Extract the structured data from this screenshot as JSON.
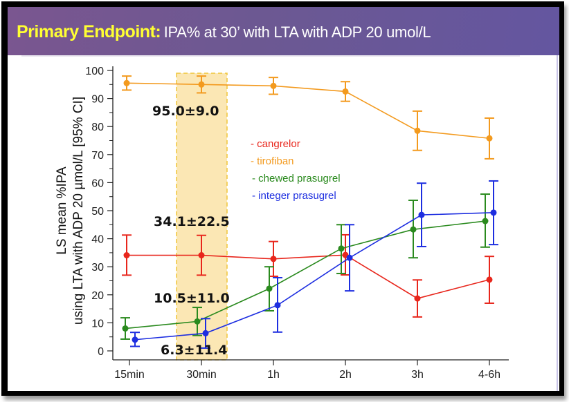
{
  "header": {
    "title_emphasis": "Primary Endpoint:",
    "title_rest": "IPA% at 30’ with LTA with ADP 20 umol/L"
  },
  "chart_data": {
    "type": "line",
    "title": "Primary Endpoint: IPA% at 30’ with LTA with ADP 20 umol/L",
    "xlabel": "",
    "ylabel_line1": "LS mean %IPA",
    "ylabel_line2": "using LTA with ADP 20 µmol/L [95% CI]",
    "categories": [
      "15min",
      "30min",
      "1h",
      "2h",
      "3h",
      "4-6h"
    ],
    "ylim": [
      0,
      100
    ],
    "yticks": [
      0,
      10,
      20,
      30,
      40,
      50,
      60,
      70,
      80,
      90,
      100
    ],
    "grid": false,
    "legend_position": "center",
    "highlight_category": "30min",
    "series": [
      {
        "name": "cangrelor",
        "legend_label": "- cangrelor",
        "color": "#e8261c",
        "values": [
          34.1,
          34.1,
          32.8,
          34.2,
          18.7,
          25.4
        ],
        "ci_low": [
          27.0,
          27.0,
          26.6,
          27.1,
          12.1,
          17.0
        ],
        "ci_high": [
          41.3,
          41.2,
          39.0,
          41.4,
          25.3,
          33.7
        ]
      },
      {
        "name": "tirofiban",
        "legend_label": "- tirofiban",
        "color": "#f39a1e",
        "values": [
          95.5,
          95.0,
          94.5,
          92.5,
          78.5,
          75.8
        ],
        "ci_low": [
          93.0,
          92.0,
          91.5,
          89.0,
          71.5,
          68.5
        ],
        "ci_high": [
          98.0,
          98.0,
          97.5,
          96.0,
          85.5,
          83.0
        ]
      },
      {
        "name": "chewed prasugrel",
        "legend_label": "- chewed prasugrel",
        "color": "#2a8a1e",
        "values": [
          8.0,
          10.5,
          22.2,
          36.5,
          43.3,
          46.3
        ],
        "ci_low": [
          4.2,
          5.5,
          14.3,
          27.6,
          33.2,
          37.0
        ],
        "ci_high": [
          11.8,
          15.5,
          30.0,
          45.0,
          53.7,
          55.9
        ]
      },
      {
        "name": "integer prasugrel",
        "legend_label": "- integer prasugrel",
        "color": "#1d2ee0",
        "values": [
          4.0,
          6.3,
          16.3,
          33.2,
          48.5,
          49.3
        ],
        "ci_low": [
          1.6,
          1.0,
          6.7,
          21.4,
          37.2,
          37.9
        ],
        "ci_high": [
          6.6,
          11.5,
          26.1,
          45.0,
          59.8,
          60.6
        ]
      }
    ],
    "annotations": [
      {
        "text": "95.0±9.0",
        "series": "tirofiban"
      },
      {
        "text": "34.1±22.5",
        "series": "cangrelor"
      },
      {
        "text": "10.5±11.0",
        "series": "chewed prasugrel"
      },
      {
        "text": "6.3±11.4",
        "series": "integer prasugrel"
      }
    ]
  }
}
